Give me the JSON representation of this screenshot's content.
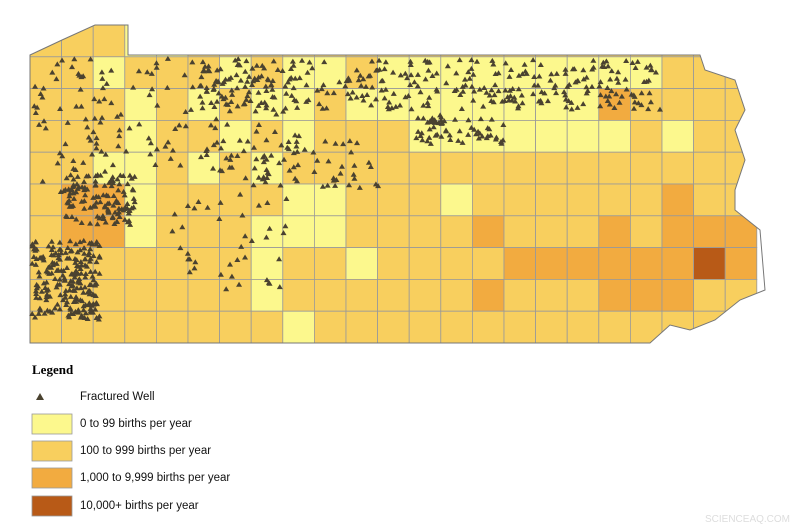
{
  "legend": {
    "title": "Legend",
    "well": "Fractured Well",
    "items": [
      {
        "label": "0 to 99 births per year",
        "color": "#fcf88d"
      },
      {
        "label": "100 to 999 births per year",
        "color": "#f8cf5e"
      },
      {
        "label": "1,000 to 9,999 births per year",
        "color": "#f2ab40"
      },
      {
        "label": "10,000+ births per year",
        "color": "#b85a17"
      }
    ]
  },
  "watermark": "SCIENCEAQ.COM"
}
